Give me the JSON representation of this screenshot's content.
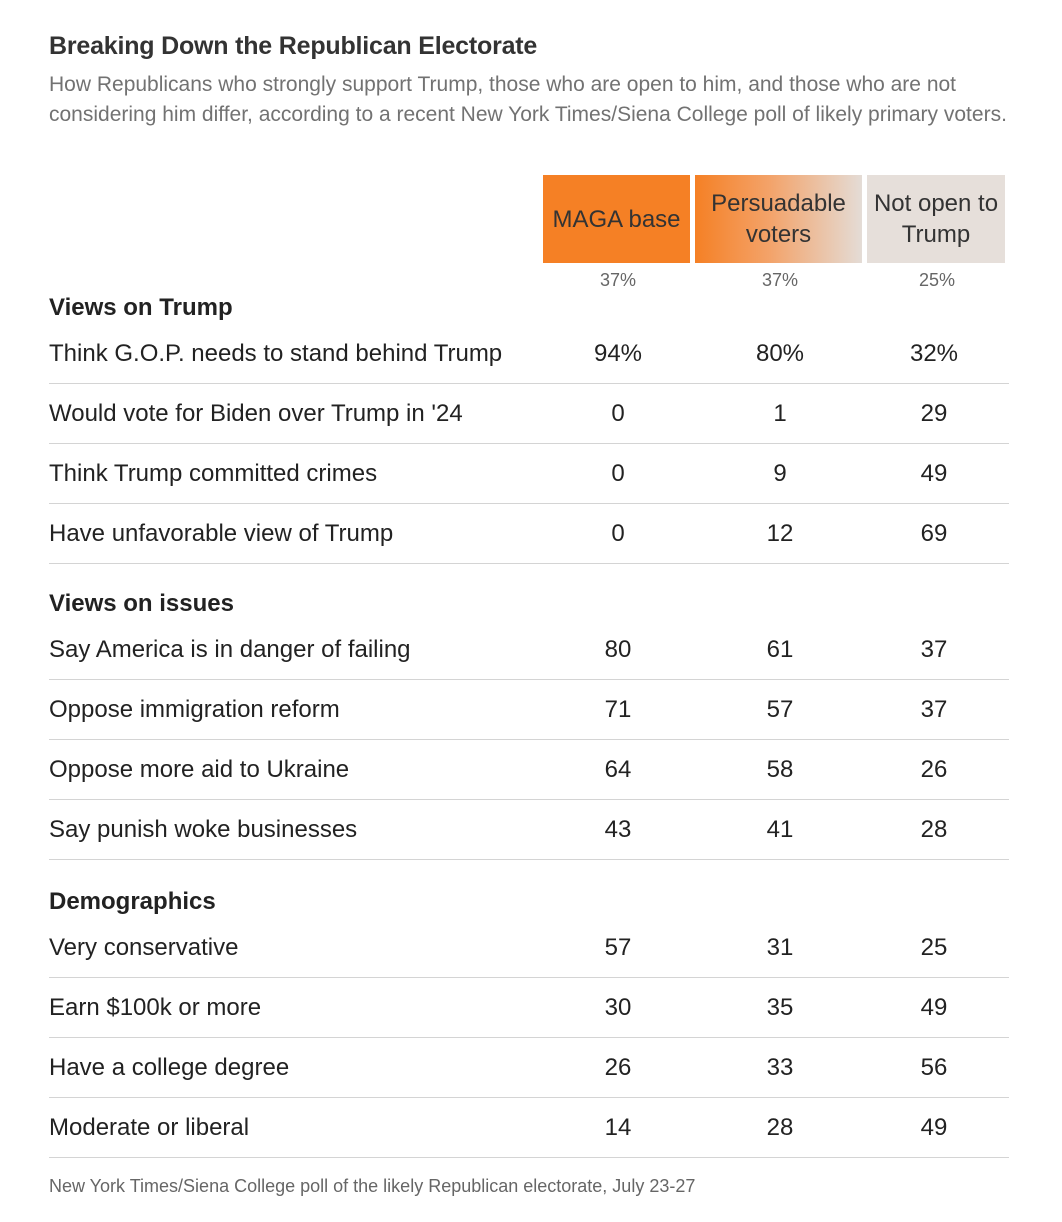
{
  "chart_data": {
    "type": "table",
    "title": "Breaking Down the Republican Electorate",
    "subtitle": "How Republicans who strongly support Trump, those who are open to him, and those who are not considering him differ, according to a recent New York Times/Siena College poll of likely primary voters.",
    "columns": [
      {
        "name": "MAGA base",
        "share": "37%",
        "color": "#f58025"
      },
      {
        "name": "Persuadable voters",
        "share": "37%",
        "color": "#f3a36a"
      },
      {
        "name": "Not open to Trump",
        "share": "25%",
        "color": "#e6dfda"
      }
    ],
    "sections": [
      {
        "title": "Views on Trump",
        "rows": [
          {
            "label": "Think G.O.P. needs to stand behind Trump",
            "values": [
              "94%",
              "80%",
              "32%"
            ]
          },
          {
            "label": "Would vote for Biden over Trump in '24",
            "values": [
              "0",
              "1",
              "29"
            ]
          },
          {
            "label": "Think Trump committed crimes",
            "values": [
              "0",
              "9",
              "49"
            ]
          },
          {
            "label": "Have unfavorable view of Trump",
            "values": [
              "0",
              "12",
              "69"
            ]
          }
        ]
      },
      {
        "title": "Views on issues",
        "rows": [
          {
            "label": "Say America is in danger of failing",
            "values": [
              "80",
              "61",
              "37"
            ]
          },
          {
            "label": "Oppose immigration reform",
            "values": [
              "71",
              "57",
              "37"
            ]
          },
          {
            "label": "Oppose more aid to Ukraine",
            "values": [
              "64",
              "58",
              "26"
            ]
          },
          {
            "label": "Say punish woke businesses",
            "values": [
              "43",
              "41",
              "28"
            ]
          }
        ]
      },
      {
        "title": "Demographics",
        "rows": [
          {
            "label": "Very conservative",
            "values": [
              "57",
              "31",
              "25"
            ]
          },
          {
            "label": "Earn $100k or more",
            "values": [
              "30",
              "35",
              "49"
            ]
          },
          {
            "label": "Have a college degree",
            "values": [
              "26",
              "33",
              "56"
            ]
          },
          {
            "label": "Moderate or liberal",
            "values": [
              "14",
              "28",
              "49"
            ]
          }
        ]
      }
    ],
    "source_note": "New York Times/Siena College poll of the likely Republican electorate, July 23-27"
  }
}
